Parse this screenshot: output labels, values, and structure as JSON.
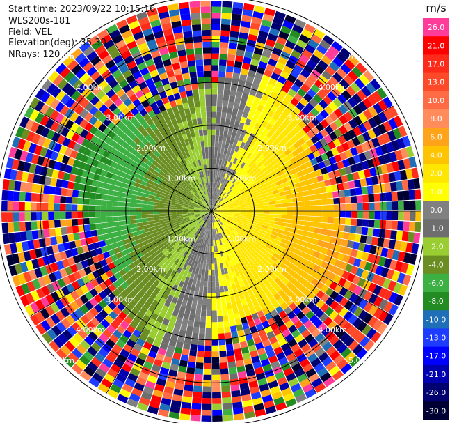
{
  "header": {
    "start_time": "Start time: 2023/09/22 10:15:16",
    "instrument": "WLS200s-181",
    "field": "Field: VEL",
    "elevation": "Elevation(deg): 35.30",
    "nrays": "NRays: 120"
  },
  "colorbar": {
    "unit": "m/s",
    "levels": [
      {
        "label": "26.0",
        "color": "#ff3c9a"
      },
      {
        "label": "21.0",
        "color": "#ff0000"
      },
      {
        "label": "17.0",
        "color": "#ff2b1a"
      },
      {
        "label": "13.0",
        "color": "#ff4a2a"
      },
      {
        "label": "10.0",
        "color": "#ff6b45"
      },
      {
        "label": "8.0",
        "color": "#ff8c5a"
      },
      {
        "label": "6.0",
        "color": "#ffa31a"
      },
      {
        "label": "4.0",
        "color": "#ffc400"
      },
      {
        "label": "2.0",
        "color": "#ffe600"
      },
      {
        "label": "1.0",
        "color": "#ffff00"
      },
      {
        "label": "0.0",
        "color": "#808080"
      },
      {
        "label": "-1.0",
        "color": "#6e6e6e"
      },
      {
        "label": "-2.0",
        "color": "#9acd32"
      },
      {
        "label": "-4.0",
        "color": "#6b8e23"
      },
      {
        "label": "-6.0",
        "color": "#3cb043"
      },
      {
        "label": "-8.0",
        "color": "#228b22"
      },
      {
        "label": "-10.0",
        "color": "#1e6fb8"
      },
      {
        "label": "-13.0",
        "color": "#1e3cff"
      },
      {
        "label": "-17.0",
        "color": "#0000ff"
      },
      {
        "label": "-21.0",
        "color": "#0000b0"
      },
      {
        "label": "-26.0",
        "color": "#000070"
      },
      {
        "label": "-30.0",
        "color": "#000033"
      }
    ]
  },
  "chart_data": {
    "type": "heatmap",
    "projection": "polar (PPI scan)",
    "title": "",
    "field": "VEL",
    "elevation_deg": 35.3,
    "nrays": 120,
    "range_rings_km": [
      1.0,
      2.0,
      3.0,
      4.0,
      5.0
    ],
    "range_ring_labels": [
      "1.00km",
      "2.00km",
      "3.00km",
      "4.00km",
      "5.00km"
    ],
    "data_pattern": {
      "inner_region_km": 3.0,
      "east_south_east_sector": "positive velocities (yellow/orange, ~1 to 6 m/s)",
      "west_north_west_sector": "negative velocities (green, ~-2 to -8 m/s)",
      "zero_line": "grey band separating the two regions",
      "outer_region": "noisy returns with mixed values across the full scale"
    }
  }
}
